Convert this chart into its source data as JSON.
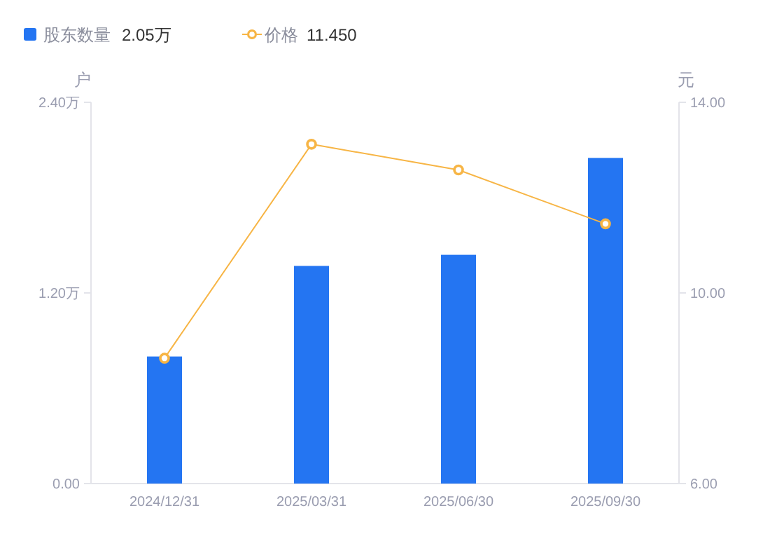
{
  "chart_data": {
    "type": "bar",
    "categories": [
      "2024/12/31",
      "2025/03/31",
      "2025/06/30",
      "2025/09/30"
    ],
    "series": [
      {
        "name": "股东数量",
        "color": "#2475f2",
        "values": [
          0.8,
          1.37,
          1.44,
          2.05
        ]
      },
      {
        "name": "价格",
        "type": "line",
        "axis": "y2",
        "color": "#f7b545",
        "marker": "circle",
        "values": [
          8.63,
          13.12,
          12.58,
          11.45
        ]
      }
    ],
    "ylabel": "户",
    "y2label": "元",
    "ylim": [
      0,
      2.4
    ],
    "yticks": [
      {
        "value": 0,
        "label": "0.00"
      },
      {
        "value": 1.2,
        "label": "1.20万"
      },
      {
        "value": 2.4,
        "label": "2.40万"
      }
    ],
    "y2lim": [
      6,
      14
    ],
    "y2ticks": [
      {
        "value": 6,
        "label": "6.00"
      },
      {
        "value": 10,
        "label": "10.00"
      },
      {
        "value": 14,
        "label": "14.00"
      }
    ],
    "annotations": [
      "2.05万",
      "11.450"
    ],
    "legend": "top left",
    "grid": false
  }
}
